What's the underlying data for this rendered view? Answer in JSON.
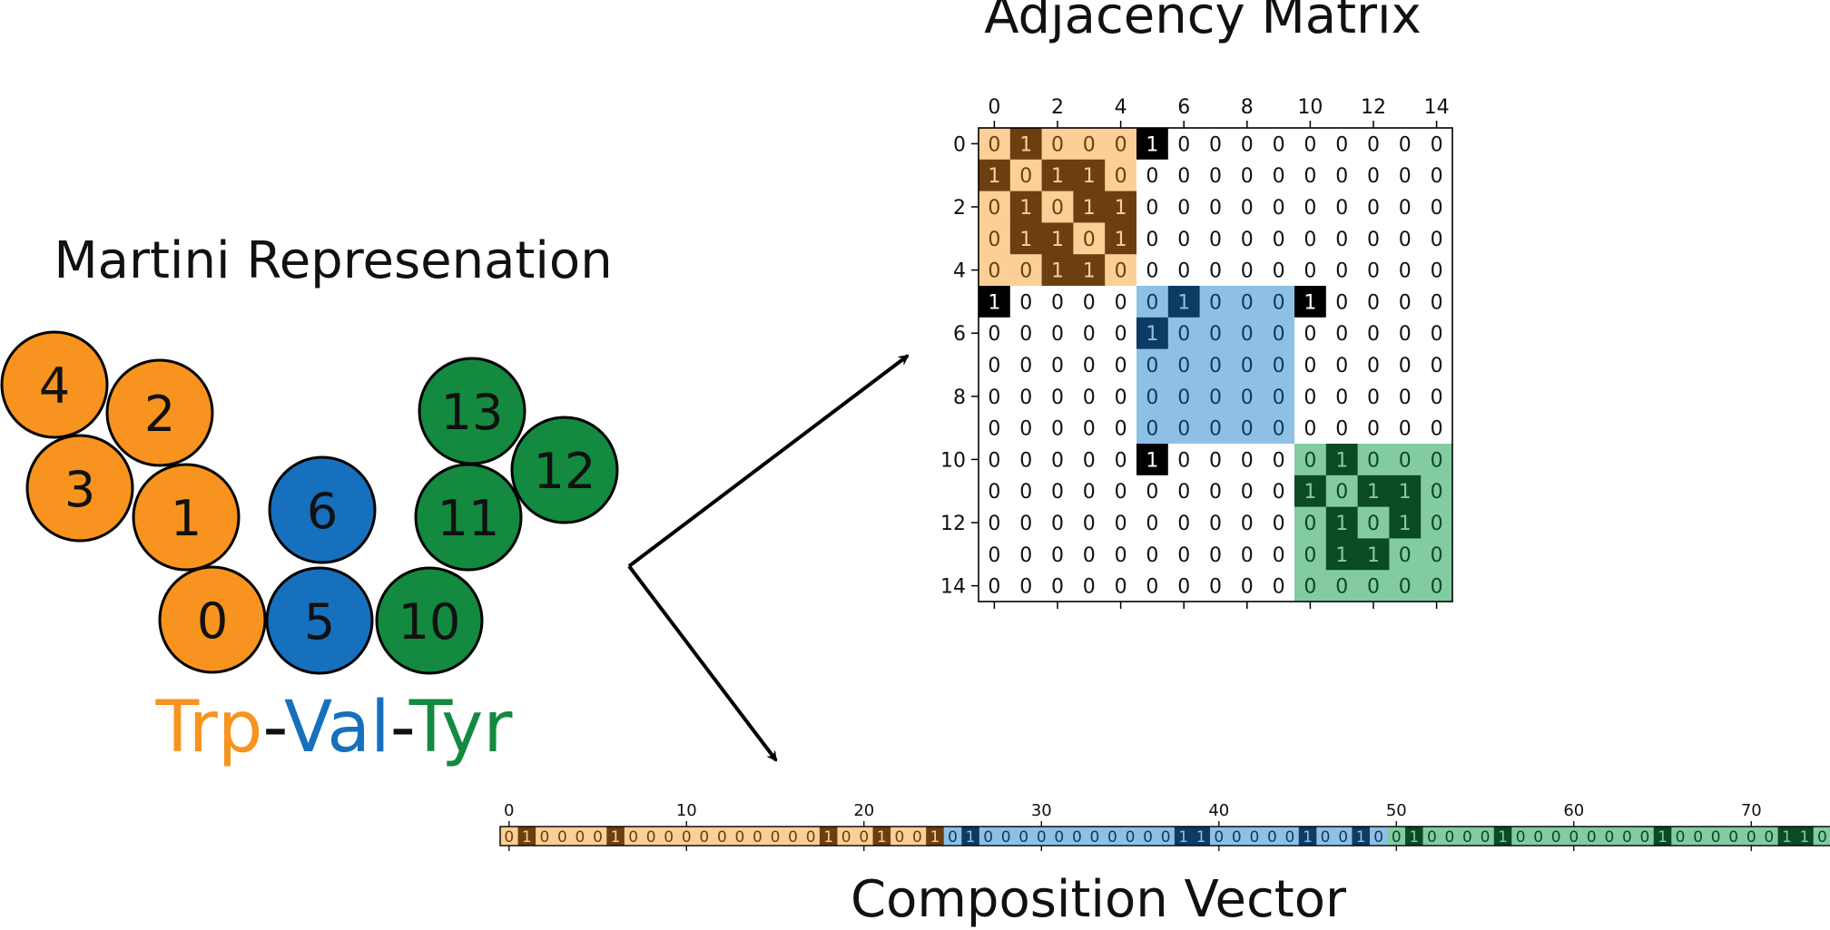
{
  "titles": {
    "martini": "Martini Represenation",
    "matrix": "Adjacency Matrix",
    "vector": "Composition Vector"
  },
  "peptide": {
    "parts": [
      {
        "text": "Trp",
        "color": "#f7931e"
      },
      {
        "text": "-",
        "color": "#111111"
      },
      {
        "text": "Val",
        "color": "#1770bd"
      },
      {
        "text": "-",
        "color": "#111111"
      },
      {
        "text": "Tyr",
        "color": "#138a3f"
      }
    ]
  },
  "beads": [
    {
      "label": "4",
      "group": "trp"
    },
    {
      "label": "2",
      "group": "trp"
    },
    {
      "label": "3",
      "group": "trp"
    },
    {
      "label": "1",
      "group": "trp"
    },
    {
      "label": "0",
      "group": "trp"
    },
    {
      "label": "6",
      "group": "val"
    },
    {
      "label": "5",
      "group": "val"
    },
    {
      "label": "13",
      "group": "tyr"
    },
    {
      "label": "12",
      "group": "tyr"
    },
    {
      "label": "11",
      "group": "tyr"
    },
    {
      "label": "10",
      "group": "tyr"
    }
  ],
  "colors": {
    "trp": "#f7931e",
    "val": "#1770bd",
    "tyr": "#138a3f",
    "trp_light": "#fbcf96",
    "trp_dark": "#6b3f10",
    "val_light": "#8ec0e6",
    "val_dark": "#0c3b63",
    "tyr_light": "#83cba0",
    "tyr_dark": "#0a4a24",
    "bond_between": "#000000"
  },
  "matrix": {
    "size": 15,
    "tick_labels": [
      "0",
      "2",
      "4",
      "6",
      "8",
      "10",
      "12",
      "14"
    ],
    "tick_values": [
      0,
      2,
      4,
      6,
      8,
      10,
      12,
      14
    ],
    "blocks": [
      {
        "group": "trp",
        "start": 0,
        "end": 4
      },
      {
        "group": "val",
        "start": 5,
        "end": 9
      },
      {
        "group": "tyr",
        "start": 10,
        "end": 14
      }
    ],
    "rows": [
      [
        0,
        1,
        0,
        0,
        0,
        1,
        0,
        0,
        0,
        0,
        0,
        0,
        0,
        0,
        0
      ],
      [
        1,
        0,
        1,
        1,
        0,
        0,
        0,
        0,
        0,
        0,
        0,
        0,
        0,
        0,
        0
      ],
      [
        0,
        1,
        0,
        1,
        1,
        0,
        0,
        0,
        0,
        0,
        0,
        0,
        0,
        0,
        0
      ],
      [
        0,
        1,
        1,
        0,
        1,
        0,
        0,
        0,
        0,
        0,
        0,
        0,
        0,
        0,
        0
      ],
      [
        0,
        0,
        1,
        1,
        0,
        0,
        0,
        0,
        0,
        0,
        0,
        0,
        0,
        0,
        0
      ],
      [
        1,
        0,
        0,
        0,
        0,
        0,
        1,
        0,
        0,
        0,
        1,
        0,
        0,
        0,
        0
      ],
      [
        0,
        0,
        0,
        0,
        0,
        1,
        0,
        0,
        0,
        0,
        0,
        0,
        0,
        0,
        0
      ],
      [
        0,
        0,
        0,
        0,
        0,
        0,
        0,
        0,
        0,
        0,
        0,
        0,
        0,
        0,
        0
      ],
      [
        0,
        0,
        0,
        0,
        0,
        0,
        0,
        0,
        0,
        0,
        0,
        0,
        0,
        0,
        0
      ],
      [
        0,
        0,
        0,
        0,
        0,
        0,
        0,
        0,
        0,
        0,
        0,
        0,
        0,
        0,
        0
      ],
      [
        0,
        0,
        0,
        0,
        0,
        1,
        0,
        0,
        0,
        0,
        0,
        1,
        0,
        0,
        0
      ],
      [
        0,
        0,
        0,
        0,
        0,
        0,
        0,
        0,
        0,
        0,
        1,
        0,
        1,
        1,
        0
      ],
      [
        0,
        0,
        0,
        0,
        0,
        0,
        0,
        0,
        0,
        0,
        0,
        1,
        0,
        1,
        0
      ],
      [
        0,
        0,
        0,
        0,
        0,
        0,
        0,
        0,
        0,
        0,
        0,
        1,
        1,
        0,
        0
      ],
      [
        0,
        0,
        0,
        0,
        0,
        0,
        0,
        0,
        0,
        0,
        0,
        0,
        0,
        0,
        0
      ]
    ]
  },
  "vector": {
    "tick_labels": [
      "0",
      "10",
      "20",
      "30",
      "40",
      "50",
      "60",
      "70"
    ],
    "tick_values": [
      0,
      10,
      20,
      30,
      40,
      50,
      60,
      70
    ],
    "bits": [
      0,
      1,
      0,
      0,
      0,
      0,
      1,
      0,
      0,
      0,
      0,
      0,
      0,
      0,
      0,
      0,
      0,
      0,
      1,
      0,
      0,
      1,
      0,
      0,
      1,
      0,
      1,
      0,
      0,
      0,
      0,
      0,
      0,
      0,
      0,
      0,
      0,
      0,
      1,
      1,
      0,
      0,
      0,
      0,
      0,
      1,
      0,
      0,
      1,
      0,
      0,
      1,
      0,
      0,
      0,
      0,
      1,
      0,
      0,
      0,
      0,
      0,
      0,
      0,
      0,
      1,
      0,
      0,
      0,
      0,
      0,
      0,
      1,
      1,
      0
    ],
    "groups": [
      {
        "group": "trp",
        "start": 0,
        "end": 24
      },
      {
        "group": "val",
        "start": 25,
        "end": 49
      },
      {
        "group": "tyr",
        "start": 50,
        "end": 74
      }
    ]
  }
}
